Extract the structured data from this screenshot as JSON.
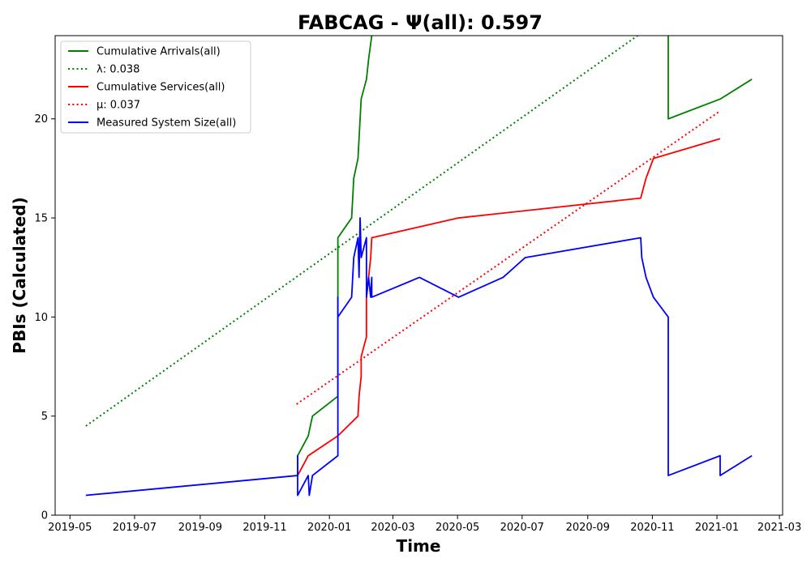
{
  "chart_data": {
    "type": "line",
    "title": "FABCAG -  Ψ(all): 0.597",
    "xlabel": "Time",
    "ylabel": "PBIs (Calculated)",
    "xlim": [
      "2019-04-17",
      "2021-03-04"
    ],
    "ylim": [
      0,
      24.2
    ],
    "x_ticks": [
      "2019-05",
      "2019-07",
      "2019-09",
      "2019-11",
      "2020-01",
      "2020-03",
      "2020-05",
      "2020-07",
      "2020-09",
      "2020-11",
      "2021-01",
      "2021-03"
    ],
    "y_ticks": [
      0,
      5,
      10,
      15,
      20
    ],
    "grid": false,
    "legend_position": "top-left",
    "series": [
      {
        "name": "Cumulative Arrivals(all)",
        "color": "#008000",
        "style": "solid",
        "points": [
          [
            "2019-12-02",
            2
          ],
          [
            "2019-12-02",
            3
          ],
          [
            "2019-12-12",
            4
          ],
          [
            "2019-12-16",
            5
          ],
          [
            "2020-01-09",
            6
          ],
          [
            "2020-01-09",
            14
          ],
          [
            "2020-01-22",
            15
          ],
          [
            "2020-01-24",
            17
          ],
          [
            "2020-01-28",
            18
          ],
          [
            "2020-01-30",
            20
          ],
          [
            "2020-01-31",
            21
          ],
          [
            "2020-02-05",
            22
          ],
          [
            "2020-02-07",
            23
          ],
          [
            "2020-02-10",
            24.2
          ]
        ]
      },
      {
        "name": "Cumulative Arrivals(all)",
        "color": "#008000",
        "style": "solid",
        "points": [
          [
            "2020-11-16",
            24.2
          ],
          [
            "2020-11-16",
            20
          ],
          [
            "2021-01-04",
            21
          ],
          [
            "2021-02-03",
            22
          ]
        ]
      },
      {
        "name": "λ: 0.038",
        "color": "#008000",
        "style": "dotted",
        "points": [
          [
            "2019-05-16",
            4.5
          ],
          [
            "2020-10-18",
            24.2
          ]
        ]
      },
      {
        "name": "Cumulative Services(all)",
        "color": "#ff0000",
        "style": "solid",
        "points": [
          [
            "2019-12-02",
            2
          ],
          [
            "2019-12-12",
            3
          ],
          [
            "2020-01-09",
            4
          ],
          [
            "2020-01-28",
            5
          ],
          [
            "2020-01-29",
            6
          ],
          [
            "2020-01-31",
            7
          ],
          [
            "2020-01-31",
            8
          ],
          [
            "2020-02-05",
            9
          ],
          [
            "2020-02-05",
            11
          ],
          [
            "2020-02-07",
            12
          ],
          [
            "2020-02-09",
            13
          ],
          [
            "2020-02-10",
            14
          ],
          [
            "2020-05-02",
            15
          ],
          [
            "2020-10-21",
            16
          ],
          [
            "2020-10-26",
            17
          ],
          [
            "2020-11-02",
            18
          ],
          [
            "2021-01-04",
            19
          ]
        ]
      },
      {
        "name": "μ: 0.037",
        "color": "#ff0000",
        "style": "dotted",
        "points": [
          [
            "2019-12-01",
            5.6
          ],
          [
            "2021-01-04",
            20.4
          ]
        ]
      },
      {
        "name": "Measured System Size(all)",
        "color": "#0000ff",
        "style": "solid",
        "points": [
          [
            "2019-05-16",
            1
          ],
          [
            "2019-12-02",
            2
          ],
          [
            "2019-12-02",
            3
          ],
          [
            "2019-12-02",
            1
          ],
          [
            "2019-12-12",
            2
          ],
          [
            "2019-12-13",
            1
          ],
          [
            "2019-12-16",
            2
          ],
          [
            "2020-01-09",
            3
          ],
          [
            "2020-01-09",
            11
          ],
          [
            "2020-01-09",
            10
          ],
          [
            "2020-01-22",
            11
          ],
          [
            "2020-01-24",
            13
          ],
          [
            "2020-01-28",
            14
          ],
          [
            "2020-01-29",
            12
          ],
          [
            "2020-01-30",
            15
          ],
          [
            "2020-01-31",
            13
          ],
          [
            "2020-02-05",
            14
          ],
          [
            "2020-02-05",
            11
          ],
          [
            "2020-02-07",
            12
          ],
          [
            "2020-02-09",
            11
          ],
          [
            "2020-02-10",
            12
          ],
          [
            "2020-02-10",
            11
          ],
          [
            "2020-03-26",
            12
          ],
          [
            "2020-05-02",
            11
          ],
          [
            "2020-06-13",
            12
          ],
          [
            "2020-07-04",
            13
          ],
          [
            "2020-10-21",
            14
          ],
          [
            "2020-10-22",
            13
          ],
          [
            "2020-10-26",
            12
          ],
          [
            "2020-11-02",
            11
          ],
          [
            "2020-11-16",
            10
          ],
          [
            "2020-11-16",
            2
          ],
          [
            "2021-01-04",
            3
          ],
          [
            "2021-01-04",
            2
          ],
          [
            "2021-02-03",
            3
          ]
        ]
      }
    ],
    "legend": [
      {
        "label": "Cumulative Arrivals(all)",
        "color": "#008000",
        "style": "solid"
      },
      {
        "label": "λ: 0.038",
        "color": "#008000",
        "style": "dotted"
      },
      {
        "label": "Cumulative Services(all)",
        "color": "#ff0000",
        "style": "solid"
      },
      {
        "label": "μ: 0.037",
        "color": "#ff0000",
        "style": "dotted"
      },
      {
        "label": "Measured System Size(all)",
        "color": "#0000ff",
        "style": "solid"
      }
    ]
  }
}
